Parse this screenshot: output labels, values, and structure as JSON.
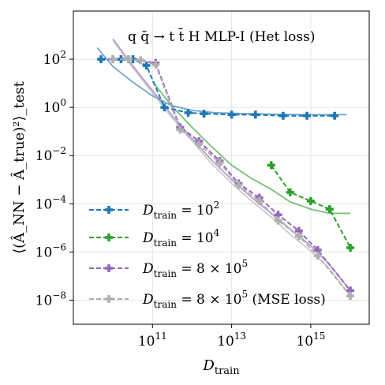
{
  "chart_data": {
    "type": "line",
    "title": "q q̄ → t t̄ H  MLP-I (Het loss)",
    "xlabel": "D_train",
    "ylabel": "⟨(Â_NN − Â_true)²⟩_test",
    "x_scale": "log",
    "y_scale": "log",
    "xlim": [
      1000000000.0,
      3e+16
    ],
    "ylim": [
      1e-09,
      10000.0
    ],
    "x_ticks": [
      {
        "value": 100000000000.0,
        "base": "10",
        "exp": "11"
      },
      {
        "value": 10000000000000.0,
        "base": "10",
        "exp": "13"
      },
      {
        "value": 1000000000000000.0,
        "base": "10",
        "exp": "15"
      }
    ],
    "y_ticks": [
      {
        "value": 100.0,
        "base": "10",
        "exp": "2"
      },
      {
        "value": 1.0,
        "base": "10",
        "exp": "0"
      },
      {
        "value": 0.01,
        "base": "10",
        "exp": "−2"
      },
      {
        "value": 0.0001,
        "base": "10",
        "exp": "−4"
      },
      {
        "value": 1e-06,
        "base": "10",
        "exp": "−6"
      },
      {
        "value": 1e-08,
        "base": "10",
        "exp": "−8"
      }
    ],
    "grid": true,
    "legend_position": "lower-left",
    "series": [
      {
        "name": "D_train = 10²",
        "legend_main": "D",
        "legend_sub": "train",
        "legend_rest": " = 10",
        "legend_sup": "2",
        "legend_tail": "",
        "color": "#1f77b4",
        "x": [
          5000000000.0,
          16000000000.0,
          32000000000.0,
          70000000000.0,
          200000000000.0,
          800000000000.0,
          2000000000000.0,
          10000000000000.0,
          40000000000000.0,
          200000000000000.0,
          800000000000000.0,
          4000000000000000.0
        ],
        "y": [
          100,
          100,
          100,
          55,
          1.0,
          0.6,
          0.55,
          0.5,
          0.5,
          0.45,
          0.45,
          0.45
        ],
        "fit_x": [
          4000000000.0,
          10000000000.0,
          30000000000.0,
          100000000000.0,
          300000000000.0,
          1000000000000.0,
          4000000000000.0,
          20000000000000.0,
          100000000000000.0,
          1000000000000000.0,
          8000000000000000.0
        ],
        "fit_y": [
          300,
          50,
          12,
          3.0,
          1.2,
          0.75,
          0.6,
          0.55,
          0.52,
          0.5,
          0.5
        ]
      },
      {
        "name": "D_train = 10⁴",
        "legend_main": "D",
        "legend_sub": "train",
        "legend_rest": " = 10",
        "legend_sup": "4",
        "legend_tail": "",
        "color": "#2ca02c",
        "x": [
          100000000000000.0,
          300000000000000.0,
          1000000000000000.0,
          3000000000000000.0,
          1e+16
        ],
        "y": [
          0.004,
          0.0003,
          0.00013,
          6e-05,
          1.5e-06
        ],
        "fit_x": [
          100000000000.0,
          300000000000.0,
          1000000000000.0,
          3000000000000.0,
          10000000000000.0,
          30000000000000.0,
          100000000000000.0,
          300000000000000.0,
          1000000000000000.0,
          3000000000000000.0,
          1e+16
        ],
        "fit_y": [
          12,
          1.2,
          0.15,
          0.025,
          0.004,
          0.0012,
          0.0004,
          0.00012,
          6e-05,
          4e-05,
          4e-05
        ]
      },
      {
        "name": "D_train = 8 × 10⁵",
        "legend_main": "D",
        "legend_sub": "train",
        "legend_rest": " = 8 × 10",
        "legend_sup": "5",
        "legend_tail": "",
        "color": "#9467bd",
        "x": [
          10000000000.0,
          25000000000.0,
          50000000000.0,
          120000000000.0,
          500000000000.0,
          1500000000000.0,
          5000000000000.0,
          15000000000000.0,
          50000000000000.0,
          150000000000000.0,
          500000000000000.0,
          1500000000000000.0,
          1e+16
        ],
        "y": [
          100,
          100,
          90,
          70,
          0.15,
          0.04,
          0.006,
          0.0007,
          0.00018,
          3.5e-05,
          7.5e-06,
          1.2e-06,
          2.5e-08
        ],
        "fit_x": [
          10000000000.0,
          30000000000.0,
          100000000000.0,
          300000000000.0,
          1000000000000.0,
          3000000000000.0,
          10000000000000.0,
          30000000000000.0,
          100000000000000.0,
          300000000000000.0,
          1000000000000000.0,
          3000000000000000.0,
          1e+16
        ],
        "fit_y": [
          700,
          60,
          5,
          0.5,
          0.05,
          0.007,
          0.001,
          0.0002,
          4e-05,
          9e-06,
          1.8e-06,
          3e-07,
          2.5e-08
        ]
      },
      {
        "name": "D_train = 8 × 10⁵ (MSE loss)",
        "legend_main": "D",
        "legend_sub": "train",
        "legend_rest": " = 8 × 10",
        "legend_sup": "5",
        "legend_tail": " (MSE loss)",
        "color": "#b0b0b0",
        "x": [
          10000000000.0,
          25000000000.0,
          50000000000.0,
          120000000000.0,
          500000000000.0,
          1500000000000.0,
          5000000000000.0,
          15000000000000.0,
          50000000000000.0,
          150000000000000.0,
          500000000000000.0,
          1500000000000000.0,
          1e+16
        ],
        "y": [
          100,
          100,
          90,
          60,
          0.12,
          0.03,
          0.005,
          0.0006,
          0.00013,
          2e-05,
          4.5e-06,
          7e-07,
          1.5e-08
        ],
        "fit_x": [
          10000000000.0,
          30000000000.0,
          100000000000.0,
          300000000000.0,
          1000000000000.0,
          3000000000000.0,
          10000000000000.0,
          30000000000000.0,
          100000000000000.0,
          300000000000000.0,
          1000000000000000.0,
          3000000000000000.0,
          1e+16
        ],
        "fit_y": [
          600,
          50,
          4,
          0.4,
          0.04,
          0.005,
          0.0007,
          0.00014,
          2.8e-05,
          5.5e-06,
          1.1e-06,
          2e-07,
          1.5e-08
        ]
      }
    ]
  }
}
